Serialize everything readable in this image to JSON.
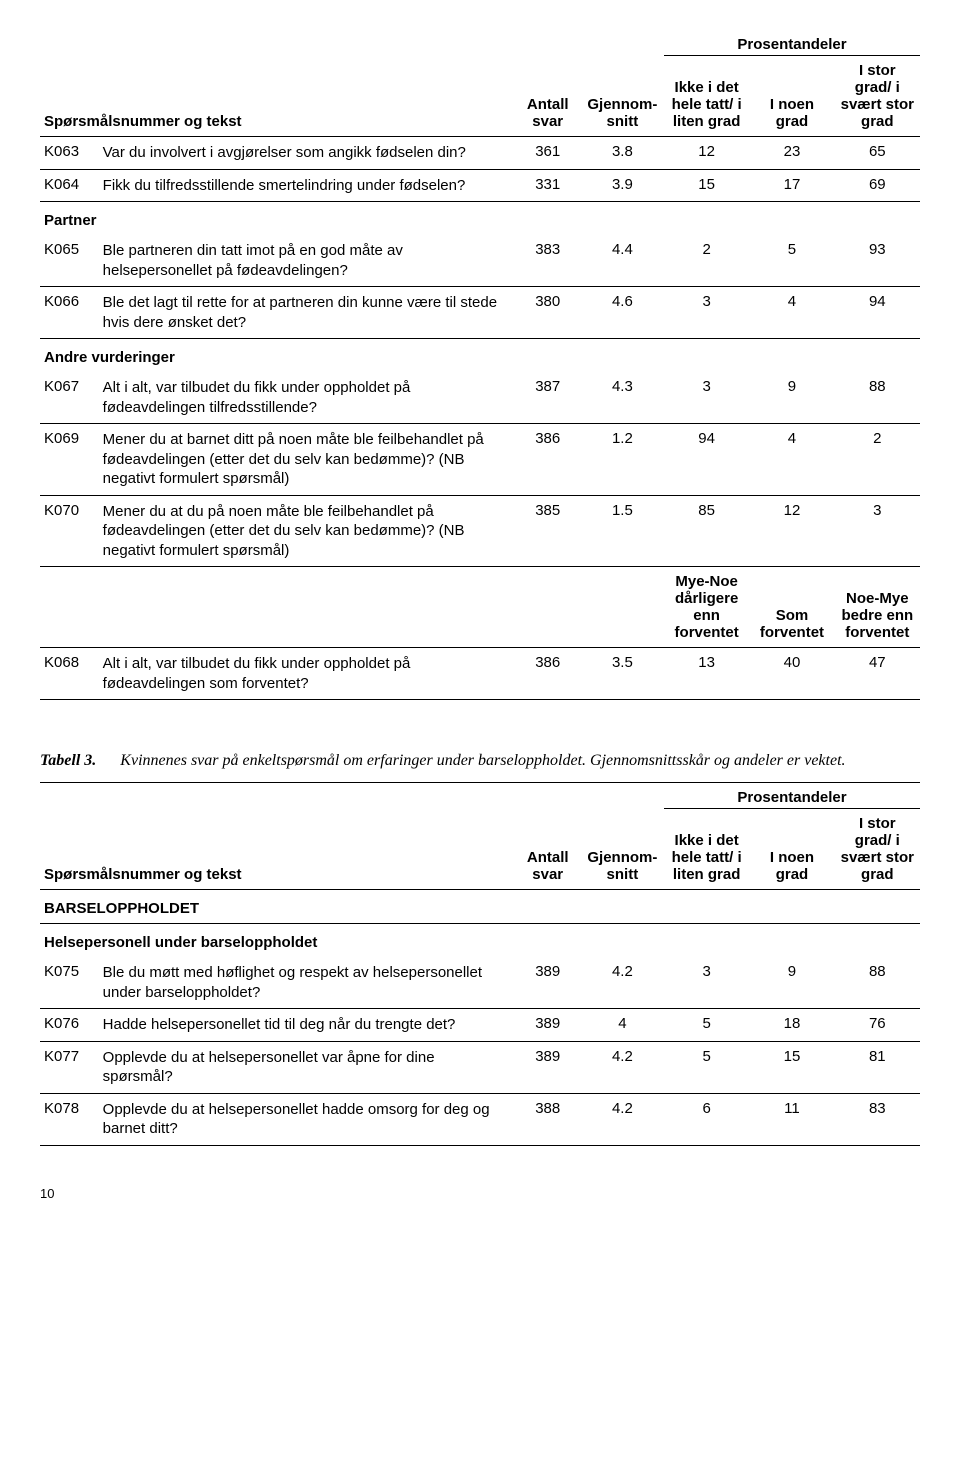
{
  "table1": {
    "super_header": "Prosentandeler",
    "headers": {
      "q": "Spørsmålsnummer og tekst",
      "n": "Antall svar",
      "mean": "Gjennom-snitt",
      "c1": "Ikke i det hele tatt/ i liten grad",
      "c2": "I noen grad",
      "c3": "I stor grad/ i svært stor grad"
    },
    "rows": [
      {
        "code": "K063",
        "text": "Var du involvert i avgjørelser som angikk fødselen din?",
        "n": "361",
        "mean": "3.8",
        "c1": "12",
        "c2": "23",
        "c3": "65"
      },
      {
        "code": "K064",
        "text": "Fikk du tilfredsstillende smertelindring under fødselen?",
        "n": "331",
        "mean": "3.9",
        "c1": "15",
        "c2": "17",
        "c3": "69"
      }
    ],
    "section_partner": "Partner",
    "rows_partner": [
      {
        "code": "K065",
        "text": "Ble partneren din tatt imot på en god måte av helsepersonellet på fødeavdelingen?",
        "n": "383",
        "mean": "4.4",
        "c1": "2",
        "c2": "5",
        "c3": "93"
      },
      {
        "code": "K066",
        "text": "Ble det lagt til rette for at partneren din kunne være til stede hvis dere ønsket det?",
        "n": "380",
        "mean": "4.6",
        "c1": "3",
        "c2": "4",
        "c3": "94"
      }
    ],
    "section_andre": "Andre vurderinger",
    "rows_andre": [
      {
        "code": "K067",
        "text": "Alt i alt, var tilbudet du fikk under oppholdet på fødeavdelingen tilfredsstillende?",
        "n": "387",
        "mean": "4.3",
        "c1": "3",
        "c2": "9",
        "c3": "88"
      },
      {
        "code": "K069",
        "text": "Mener du at barnet ditt på noen måte ble feilbehandlet på fødeavdelingen (etter det du selv kan bedømme)? (NB negativt formulert spørsmål)",
        "n": "386",
        "mean": "1.2",
        "c1": "94",
        "c2": "4",
        "c3": "2"
      },
      {
        "code": "K070",
        "text": "Mener du at du på noen måte ble feilbehandlet på fødeavdelingen (etter det du selv kan bedømme)? (NB negativt formulert spørsmål)",
        "n": "385",
        "mean": "1.5",
        "c1": "85",
        "c2": "12",
        "c3": "3"
      }
    ],
    "headers2": {
      "c1": "Mye-Noe dårligere enn forventet",
      "c2": "Som forventet",
      "c3": "Noe-Mye bedre enn forventet"
    },
    "row_k068": {
      "code": "K068",
      "text": "Alt i alt, var tilbudet du fikk under oppholdet på fødeavdelingen som forventet?",
      "n": "386",
      "mean": "3.5",
      "c1": "13",
      "c2": "40",
      "c3": "47"
    }
  },
  "caption": {
    "num": "Tabell 3.",
    "text": "Kvinnenes svar på enkeltspørsmål om erfaringer under barseloppholdet. Gjennomsnittsskår og andeler er vektet."
  },
  "table2": {
    "super_header": "Prosentandeler",
    "headers": {
      "q": "Spørsmålsnummer og tekst",
      "n": "Antall svar",
      "mean": "Gjennom-snitt",
      "c1": "Ikke i det hele tatt/ i liten grad",
      "c2": "I noen grad",
      "c3": "I stor grad/ i svært stor grad"
    },
    "section_barsel": "BARSELOPPHOLDET",
    "section_helse": "Helsepersonell under barseloppholdet",
    "rows": [
      {
        "code": "K075",
        "text": "Ble du møtt med høflighet og respekt av helsepersonellet under barseloppholdet?",
        "n": "389",
        "mean": "4.2",
        "c1": "3",
        "c2": "9",
        "c3": "88"
      },
      {
        "code": "K076",
        "text": "Hadde helsepersonellet tid til deg når du trengte det?",
        "n": "389",
        "mean": "4",
        "c1": "5",
        "c2": "18",
        "c3": "76"
      },
      {
        "code": "K077",
        "text": "Opplevde du at helsepersonellet var åpne for dine spørsmål?",
        "n": "389",
        "mean": "4.2",
        "c1": "5",
        "c2": "15",
        "c3": "81"
      },
      {
        "code": "K078",
        "text": "Opplevde du at helsepersonellet hadde omsorg for deg og barnet ditt?",
        "n": "388",
        "mean": "4.2",
        "c1": "6",
        "c2": "11",
        "c3": "83"
      }
    ]
  },
  "page_number": "10"
}
